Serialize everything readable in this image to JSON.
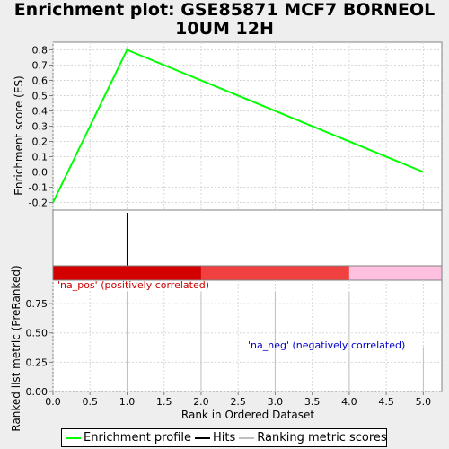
{
  "title": "Enrichment plot: GSE85871 MCF7 BORNEOL 10UM 12H",
  "chart_data": {
    "type": "line",
    "es": {
      "ylabel": "Enrichment score (ES)",
      "x": [
        0,
        1,
        5
      ],
      "y": [
        -0.2,
        0.8,
        0.0
      ],
      "ylim": [
        -0.25,
        0.85
      ],
      "yticks": [
        "0.8",
        "0.7",
        "0.6",
        "0.5",
        "0.4",
        "0.3",
        "0.2",
        "0.1",
        "0.0",
        "-0.1",
        "-0.2"
      ],
      "color": "#00ff00"
    },
    "hits": {
      "x": [
        1
      ]
    },
    "colorbar": {
      "segments": [
        {
          "from": 0,
          "to": 2,
          "color": "#d40000"
        },
        {
          "from": 2,
          "to": 4,
          "color": "#f04040"
        },
        {
          "from": 4,
          "to": 5.25,
          "color": "#ffc0e0"
        }
      ]
    },
    "ranked": {
      "ylabel": "Ranked list metric (PreRanked)",
      "x": [
        1,
        2,
        3,
        4,
        5
      ],
      "values": [
        0.85,
        0.85,
        0.85,
        0.85,
        0.38
      ],
      "ylim": [
        0,
        0.95
      ],
      "yticks": [
        "0.75",
        "0.50",
        "0.25",
        "0.00"
      ],
      "pos_label": "'na_pos' (positively correlated)",
      "neg_label": "'na_neg' (negatively correlated)",
      "pos_color": "#cc0000",
      "neg_color": "#0000cc"
    },
    "xaxis": {
      "xlabel": "Rank in Ordered Dataset",
      "xlim": [
        0,
        5.25
      ],
      "ticks": [
        "0.0",
        "0.5",
        "1.0",
        "1.5",
        "2.0",
        "2.5",
        "3.0",
        "3.5",
        "4.0",
        "4.5",
        "5.0"
      ]
    }
  },
  "legend": {
    "enrichment_label": "Enrichment profile",
    "hits_label": "Hits",
    "ranking_label": "Ranking metric scores",
    "enrichment_color": "#00ff00",
    "hits_color": "#000000",
    "ranking_color": "#c0c0c0"
  }
}
